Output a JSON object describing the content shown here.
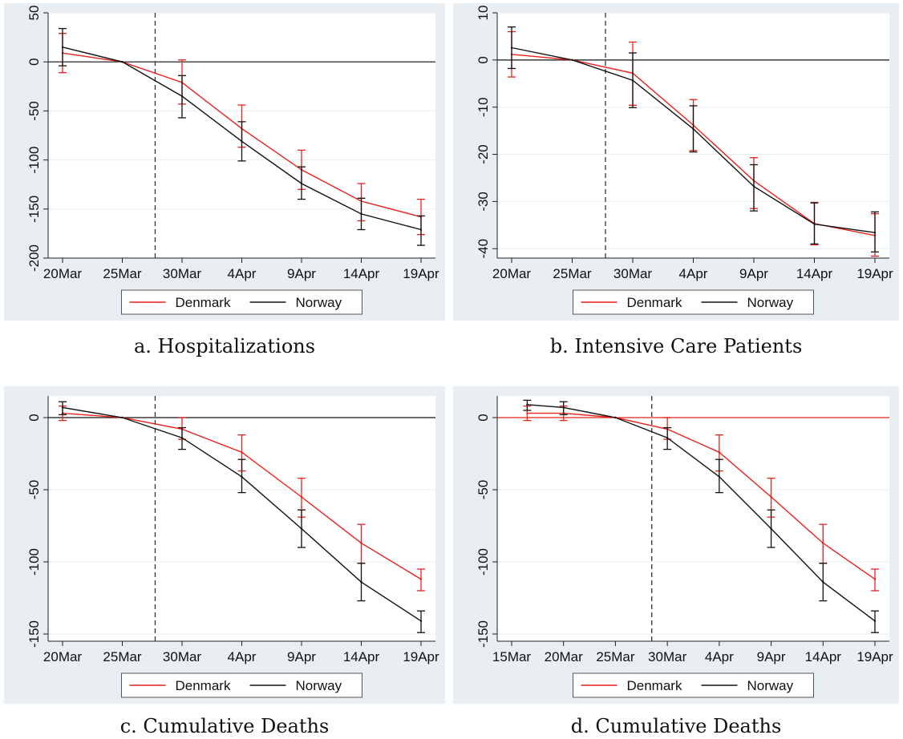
{
  "colors": {
    "outer_bg": "#e8eef2",
    "plot_bg": "#ffffff",
    "grid": "#e6edf2",
    "denmark": "#e8211b",
    "norway": "#111111"
  },
  "legend": {
    "series_a": "Denmark",
    "series_b": "Norway"
  },
  "captions": {
    "a": "a. Hospitalizations",
    "b": "b. Intensive Care Patients",
    "c": "c. Cumulative Deaths",
    "d": "d. Cumulative Deaths"
  },
  "chart_data": [
    {
      "id": "a",
      "type": "line",
      "title": "",
      "xlabel": "",
      "ylabel": "",
      "grid": true,
      "legend_position": "bottom",
      "x_tick_labels": [
        "20Mar",
        "25Mar",
        "30Mar",
        "4Apr",
        "9Apr",
        "14Apr",
        "19Apr"
      ],
      "x_range": [
        0,
        6
      ],
      "ylim": [
        -200,
        50
      ],
      "y_ticks": [
        50,
        0,
        -50,
        -100,
        -150,
        -200
      ],
      "event_line_x": 1.55,
      "zero_line_color": "#111111",
      "series": [
        {
          "name": "Denmark",
          "x": [
            0,
            1,
            2,
            3,
            4,
            5,
            6
          ],
          "values": [
            9,
            0,
            -21,
            -68,
            -110,
            -142,
            -158
          ],
          "ci_low": [
            -11,
            0,
            -43,
            -87,
            -130,
            -162,
            -176
          ],
          "ci_high": [
            29,
            0,
            2,
            -44,
            -90,
            -124,
            -140
          ]
        },
        {
          "name": "Norway",
          "x": [
            0,
            1,
            2,
            3,
            4,
            5,
            6
          ],
          "values": [
            15,
            0,
            -35,
            -81,
            -124,
            -155,
            -171
          ],
          "ci_low": [
            -4,
            0,
            -57,
            -101,
            -140,
            -171,
            -187
          ],
          "ci_high": [
            34,
            0,
            -14,
            -61,
            -107,
            -139,
            -157
          ]
        }
      ]
    },
    {
      "id": "b",
      "type": "line",
      "title": "",
      "xlabel": "",
      "ylabel": "",
      "grid": true,
      "legend_position": "bottom",
      "x_tick_labels": [
        "20Mar",
        "25Mar",
        "30Mar",
        "4Apr",
        "9Apr",
        "14Apr",
        "19Apr"
      ],
      "x_range": [
        0,
        6
      ],
      "ylim": [
        -42,
        10
      ],
      "y_ticks": [
        10,
        0,
        -10,
        -20,
        -30,
        -40
      ],
      "event_line_x": 1.55,
      "zero_line_color": "#111111",
      "series": [
        {
          "name": "Denmark",
          "x": [
            0,
            1,
            2,
            3,
            4,
            5,
            6
          ],
          "values": [
            1.2,
            0,
            -2.8,
            -13.8,
            -25.6,
            -34.7,
            -37.2
          ],
          "ci_low": [
            -3.6,
            0,
            -9.6,
            -19.2,
            -31.5,
            -39.2,
            -41.6
          ],
          "ci_high": [
            6.0,
            0,
            3.8,
            -8.4,
            -20.7,
            -30.2,
            -32.6
          ]
        },
        {
          "name": "Norway",
          "x": [
            0,
            1,
            2,
            3,
            4,
            5,
            6
          ],
          "values": [
            2.6,
            0,
            -4.3,
            -14.6,
            -26.8,
            -34.8,
            -36.6
          ],
          "ci_low": [
            -1.8,
            0,
            -10.1,
            -19.5,
            -32.0,
            -39.0,
            -40.7
          ],
          "ci_high": [
            7.0,
            0,
            1.5,
            -9.7,
            -22.2,
            -30.3,
            -32.2
          ]
        }
      ]
    },
    {
      "id": "c",
      "type": "line",
      "title": "",
      "xlabel": "",
      "ylabel": "",
      "grid": true,
      "legend_position": "bottom",
      "x_tick_labels": [
        "20Mar",
        "25Mar",
        "30Mar",
        "4Apr",
        "9Apr",
        "14Apr",
        "19Apr"
      ],
      "x_range": [
        0,
        6
      ],
      "ylim": [
        -155,
        15
      ],
      "y_ticks": [
        0,
        -50,
        -100,
        -150
      ],
      "event_line_x": 1.55,
      "zero_line_color": "#111111",
      "series": [
        {
          "name": "Denmark",
          "x": [
            0,
            1,
            2,
            3,
            4,
            5,
            6
          ],
          "values": [
            3,
            0,
            -8,
            -24,
            -55,
            -87,
            -112
          ],
          "ci_low": [
            -2,
            0,
            -15,
            -37,
            -69,
            -101,
            -120
          ],
          "ci_high": [
            8,
            0,
            0,
            -12,
            -42,
            -74,
            -105
          ]
        },
        {
          "name": "Norway",
          "x": [
            0,
            1,
            2,
            3,
            4,
            5,
            6
          ],
          "values": [
            7,
            0,
            -14,
            -41,
            -77,
            -114,
            -141
          ],
          "ci_low": [
            2,
            0,
            -22,
            -52,
            -90,
            -127,
            -149
          ],
          "ci_high": [
            11,
            0,
            -7,
            -29,
            -64,
            -101,
            -134
          ]
        }
      ]
    },
    {
      "id": "d",
      "type": "line",
      "title": "",
      "xlabel": "",
      "ylabel": "",
      "grid": true,
      "legend_position": "bottom",
      "x_tick_labels": [
        "15Mar",
        "20Mar",
        "25Mar",
        "30Mar",
        "4Apr",
        "9Apr",
        "14Apr",
        "19Apr"
      ],
      "x_range": [
        0,
        7
      ],
      "ylim": [
        -155,
        15
      ],
      "y_ticks": [
        0,
        -50,
        -100,
        -150
      ],
      "event_line_x": 2.7,
      "zero_line_color": "#e8211b",
      "series": [
        {
          "name": "Denmark",
          "x": [
            0.3,
            1,
            2,
            3,
            4,
            5,
            6,
            7
          ],
          "values": [
            3,
            3,
            0,
            -8,
            -24,
            -55,
            -87,
            -112
          ],
          "ci_low": [
            -2,
            -2,
            0,
            -15,
            -37,
            -69,
            -101,
            -120
          ],
          "ci_high": [
            8,
            8,
            0,
            0,
            -12,
            -42,
            -74,
            -105
          ]
        },
        {
          "name": "Norway",
          "x": [
            0.3,
            1,
            2,
            3,
            4,
            5,
            6,
            7
          ],
          "values": [
            9,
            7,
            0,
            -14,
            -41,
            -77,
            -114,
            -141
          ],
          "ci_low": [
            5,
            2,
            0,
            -22,
            -52,
            -90,
            -127,
            -149
          ],
          "ci_high": [
            12,
            11,
            0,
            -7,
            -29,
            -64,
            -101,
            -134
          ]
        }
      ]
    }
  ]
}
